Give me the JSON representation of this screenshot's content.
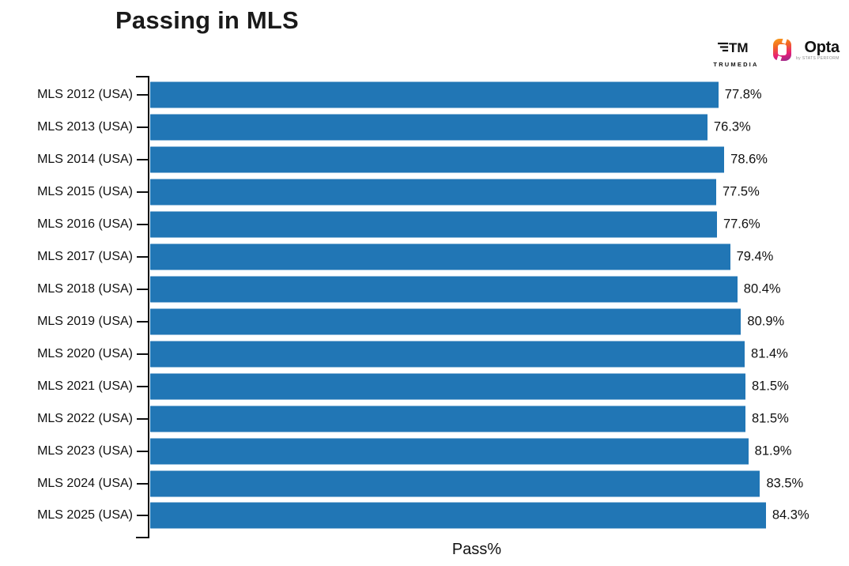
{
  "header": {
    "title": "Passing in MLS",
    "logos": {
      "trumedia_label": "TRUMEDIA",
      "opta_label": "Opta",
      "opta_sub_label": "by STATS PERFORM"
    }
  },
  "colors": {
    "bar": "#2176b5",
    "axis": "#111111",
    "text": "#111111",
    "muted": "#8a8a8a"
  },
  "chart_data": {
    "type": "bar",
    "orientation": "horizontal",
    "title": "Passing in MLS",
    "xlabel": "Pass%",
    "ylabel": "",
    "xlim": [
      0,
      94.6
    ],
    "grid": false,
    "legend": "none",
    "categories": [
      "MLS 2012 (USA)",
      "MLS 2013 (USA)",
      "MLS 2014 (USA)",
      "MLS 2015 (USA)",
      "MLS 2016 (USA)",
      "MLS 2017 (USA)",
      "MLS 2018 (USA)",
      "MLS 2019 (USA)",
      "MLS 2020 (USA)",
      "MLS 2021 (USA)",
      "MLS 2022 (USA)",
      "MLS 2023 (USA)",
      "MLS 2024 (USA)",
      "MLS 2025 (USA)"
    ],
    "values": [
      77.8,
      76.3,
      78.6,
      77.5,
      77.6,
      79.4,
      80.4,
      80.9,
      81.4,
      81.5,
      81.5,
      81.9,
      83.5,
      84.3
    ],
    "value_labels": [
      "77.8%",
      "76.3%",
      "78.6%",
      "77.5%",
      "77.6%",
      "79.4%",
      "80.4%",
      "80.9%",
      "81.4%",
      "81.5%",
      "81.5%",
      "81.9%",
      "83.5%",
      "84.3%"
    ]
  }
}
